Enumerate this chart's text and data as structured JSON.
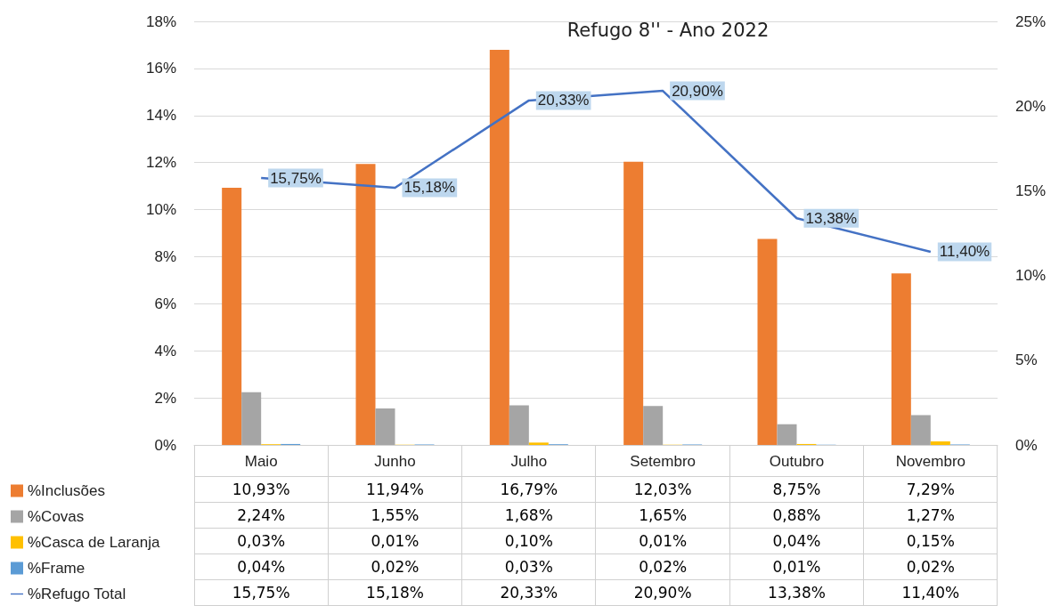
{
  "chart_data": {
    "type": "bar",
    "title": "Refugo 8'' - Ano 2022",
    "categories": [
      "Maio",
      "Junho",
      "Julho",
      "Setembro",
      "Outubro",
      "Novembro"
    ],
    "series": [
      {
        "name": "%Inclusões",
        "color": "#ed7d31",
        "values": [
          10.93,
          11.94,
          16.79,
          12.03,
          8.75,
          7.29
        ],
        "value_labels": [
          "10,93%",
          "11,94%",
          "16,79%",
          "12,03%",
          "8,75%",
          "7,29%"
        ]
      },
      {
        "name": "%Covas",
        "color": "#a5a5a5",
        "values": [
          2.24,
          1.55,
          1.68,
          1.65,
          0.88,
          1.27
        ],
        "value_labels": [
          "2,24%",
          "1,55%",
          "1,68%",
          "1,65%",
          "0,88%",
          "1,27%"
        ]
      },
      {
        "name": "%Casca de Laranja",
        "color": "#ffc000",
        "values": [
          0.03,
          0.01,
          0.1,
          0.01,
          0.04,
          0.15
        ],
        "value_labels": [
          "0,03%",
          "0,01%",
          "0,10%",
          "0,01%",
          "0,04%",
          "0,15%"
        ]
      },
      {
        "name": "%Frame",
        "color": "#5b9bd5",
        "values": [
          0.04,
          0.02,
          0.03,
          0.02,
          0.01,
          0.02
        ],
        "value_labels": [
          "0,04%",
          "0,02%",
          "0,03%",
          "0,02%",
          "0,01%",
          "0,02%"
        ]
      },
      {
        "name": "%Refugo Total",
        "type": "line",
        "axis": "y2",
        "color": "#4472c4",
        "values": [
          15.75,
          15.18,
          20.33,
          20.9,
          13.38,
          11.4
        ],
        "value_labels": [
          "15,75%",
          "15,18%",
          "20,33%",
          "20,90%",
          "13,38%",
          "11,40%"
        ]
      }
    ],
    "ylim": [
      0,
      18
    ],
    "yticks": [
      {
        "value": 0,
        "label": "0%"
      },
      {
        "value": 2,
        "label": "2%"
      },
      {
        "value": 4,
        "label": "4%"
      },
      {
        "value": 6,
        "label": "6%"
      },
      {
        "value": 8,
        "label": "8%"
      },
      {
        "value": 10,
        "label": "10%"
      },
      {
        "value": 12,
        "label": "12%"
      },
      {
        "value": 14,
        "label": "14%"
      },
      {
        "value": 16,
        "label": "16%"
      },
      {
        "value": 18,
        "label": "18%"
      }
    ],
    "y2lim": [
      0,
      25
    ],
    "y2ticks": [
      {
        "value": 0,
        "label": "0%"
      },
      {
        "value": 5,
        "label": "5%"
      },
      {
        "value": 10,
        "label": "10%"
      },
      {
        "value": 15,
        "label": "15%"
      },
      {
        "value": 20,
        "label": "20%"
      },
      {
        "value": 25,
        "label": "25%"
      }
    ],
    "grid": "y",
    "legend": "bottom",
    "marker": "none",
    "line_style": "solid"
  }
}
